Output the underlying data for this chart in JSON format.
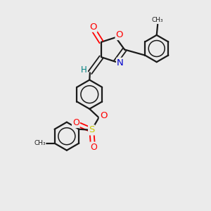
{
  "background_color": "#ebebeb",
  "bond_color": "#1a1a1a",
  "atom_colors": {
    "O": "#ff0000",
    "N": "#0000cc",
    "S": "#cccc00",
    "H": "#008080",
    "C": "#1a1a1a"
  },
  "figsize": [
    3.0,
    3.0
  ],
  "dpi": 100,
  "xlim": [
    0,
    10
  ],
  "ylim": [
    0,
    10
  ]
}
